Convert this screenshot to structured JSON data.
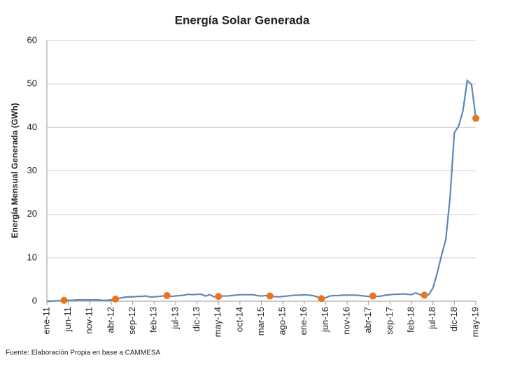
{
  "chart_data": {
    "type": "line",
    "title": "Energía Solar Generada",
    "y_label": "Energía Mensual Generada (GWh)",
    "source": "Fuente: Elaboración Propia en base a CAMMESA",
    "categories": [
      "ene-11",
      null,
      null,
      null,
      null,
      "jun-11",
      null,
      null,
      null,
      null,
      "nov-11",
      null,
      null,
      null,
      null,
      "abr-12",
      null,
      null,
      null,
      null,
      "sep-12",
      null,
      null,
      null,
      null,
      "feb-13",
      null,
      null,
      null,
      null,
      "jul-13",
      null,
      null,
      null,
      null,
      "dic-13",
      null,
      null,
      null,
      null,
      "may-14",
      null,
      null,
      null,
      null,
      "oct-14",
      null,
      null,
      null,
      null,
      "mar-15",
      null,
      null,
      null,
      null,
      "ago-15",
      null,
      null,
      null,
      null,
      "ene-16",
      null,
      null,
      null,
      null,
      "jun-16",
      null,
      null,
      null,
      null,
      "nov-16",
      null,
      null,
      null,
      null,
      "abr-17",
      null,
      null,
      null,
      null,
      "sep-17",
      null,
      null,
      null,
      null,
      "feb-18",
      null,
      null,
      null,
      null,
      "jul-18",
      null,
      null,
      null,
      null,
      "dic-18",
      null,
      null,
      null,
      null,
      "may-19"
    ],
    "series": [
      {
        "mode": "line",
        "color": "#5a87bb",
        "values": [
          0,
          0,
          0.1,
          0.1,
          0.2,
          0.2,
          0.2,
          0.3,
          0.3,
          0.3,
          0.3,
          0.3,
          0.3,
          0.2,
          0.2,
          0.3,
          0.5,
          0.7,
          0.9,
          1.0,
          1.0,
          1.1,
          1.1,
          1.2,
          1.0,
          1.0,
          1.1,
          1.2,
          1.3,
          1.1,
          1.2,
          1.3,
          1.4,
          1.6,
          1.5,
          1.6,
          1.6,
          1.2,
          1.5,
          1.0,
          1.1,
          1.2,
          1.2,
          1.3,
          1.4,
          1.5,
          1.5,
          1.5,
          1.5,
          1.3,
          1.2,
          1.3,
          1.2,
          1.1,
          1.0,
          1.1,
          1.2,
          1.3,
          1.4,
          1.4,
          1.5,
          1.4,
          1.3,
          1.0,
          0.6,
          0.8,
          1.2,
          1.3,
          1.3,
          1.4,
          1.4,
          1.4,
          1.4,
          1.3,
          1.2,
          1.1,
          1.2,
          1.1,
          1.2,
          1.4,
          1.5,
          1.6,
          1.6,
          1.7,
          1.6,
          1.5,
          1.9,
          1.5,
          1.4,
          1.5,
          3.0,
          6.5,
          10.5,
          14.2,
          24.0,
          38.8,
          40.3,
          43.8,
          50.8,
          49.9,
          42.1
        ]
      },
      {
        "mode": "markers",
        "color": "#e8761e",
        "values": [
          null,
          null,
          null,
          null,
          0.2,
          null,
          null,
          null,
          null,
          null,
          null,
          null,
          null,
          null,
          null,
          null,
          0.5,
          null,
          null,
          null,
          null,
          null,
          null,
          null,
          null,
          null,
          null,
          null,
          1.3,
          null,
          null,
          null,
          null,
          null,
          null,
          null,
          null,
          null,
          null,
          null,
          1.1,
          null,
          null,
          null,
          null,
          null,
          null,
          null,
          null,
          null,
          null,
          null,
          1.2,
          null,
          null,
          null,
          null,
          null,
          null,
          null,
          null,
          null,
          null,
          null,
          0.6,
          null,
          null,
          null,
          null,
          null,
          null,
          null,
          null,
          null,
          null,
          null,
          1.2,
          null,
          null,
          null,
          null,
          null,
          null,
          null,
          null,
          null,
          null,
          null,
          1.4,
          null,
          null,
          null,
          null,
          null,
          null,
          null,
          null,
          null,
          null,
          null,
          42.1
        ]
      }
    ],
    "ylim": [
      0,
      60
    ],
    "yticks": [
      0,
      10,
      20,
      30,
      40,
      50,
      60
    ],
    "grid": true
  }
}
